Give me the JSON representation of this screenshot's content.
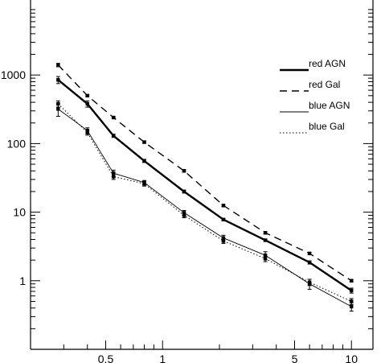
{
  "chart_data": {
    "type": "line",
    "title": "",
    "xlabel": "",
    "ylabel": "",
    "x_scale": "log",
    "y_scale": "log",
    "xlim": [
      0.2,
      13
    ],
    "ylim": [
      0.1,
      10000
    ],
    "x_tick_labels": [
      {
        "value": 0.5,
        "label": "0.5"
      },
      {
        "value": 1,
        "label": "1"
      },
      {
        "value": 5,
        "label": "5"
      },
      {
        "value": 10,
        "label": "10"
      }
    ],
    "y_tick_labels": [
      {
        "value": 1000,
        "label": "1000"
      },
      {
        "value": 100,
        "label": "100"
      },
      {
        "value": 10,
        "label": "10"
      },
      {
        "value": 1,
        "label": "1"
      }
    ],
    "legend": {
      "position": "right"
    },
    "x": [
      0.28,
      0.4,
      0.55,
      0.8,
      1.3,
      2.1,
      3.5,
      6,
      10
    ],
    "series": [
      {
        "name": "red AGN",
        "style": "thick-solid",
        "values": [
          850,
          380,
          130,
          56,
          20,
          7.8,
          3.9,
          1.85,
          0.72
        ],
        "errors": [
          100,
          40,
          7,
          3,
          1,
          0.3,
          0.15,
          0.1,
          0.06
        ]
      },
      {
        "name": "red Gal",
        "style": "dashed",
        "values": [
          1400,
          500,
          240,
          105,
          40,
          12.5,
          5,
          2.5,
          1.0
        ],
        "errors": [
          80,
          15,
          6,
          3,
          1.5,
          0.4,
          0.2,
          0.1,
          0.04
        ]
      },
      {
        "name": "blue AGN",
        "style": "thin-solid",
        "values": [
          320,
          155,
          37,
          27,
          9.8,
          4.2,
          2.35,
          0.9,
          0.42
        ],
        "errors": [
          70,
          15,
          4,
          2,
          0.8,
          0.4,
          0.3,
          0.15,
          0.06
        ]
      },
      {
        "name": "blue Gal",
        "style": "dotted",
        "values": [
          380,
          145,
          33,
          26,
          9,
          3.8,
          2.1,
          0.95,
          0.5
        ],
        "errors": [
          40,
          12,
          3,
          2,
          0.7,
          0.3,
          0.2,
          0.1,
          0.05
        ]
      }
    ]
  }
}
